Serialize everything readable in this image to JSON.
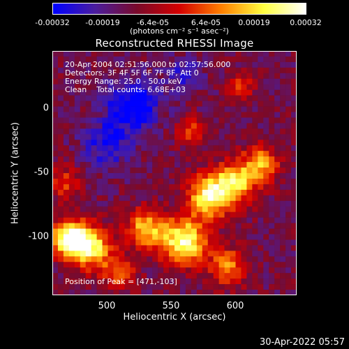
{
  "colorbar": {
    "tick_labels": [
      "-0.00032",
      "-0.00019",
      "-6.4e-05",
      "6.4e-05",
      "0.00019",
      "0.00032"
    ],
    "units": "(photons cm⁻² s⁻¹ asec⁻²)",
    "range": [
      -0.00032,
      0.00032
    ],
    "colors": [
      "#0000ff",
      "#4b1d9e",
      "#7a0a2a",
      "#d40000",
      "#ff8000",
      "#ffff40",
      "#ffffff"
    ]
  },
  "chart_data": {
    "type": "heatmap",
    "title": "Reconstructed RHESSI Image",
    "xlabel": "Heliocentric X (arcsec)",
    "ylabel": "Heliocentric Y (arcsec)",
    "xlim": [
      458,
      648
    ],
    "ylim": [
      -147,
      43
    ],
    "xticks": [
      500,
      550,
      600
    ],
    "yticks": [
      0,
      -50,
      -100
    ],
    "peak": {
      "label": "Position of Peak = [471,-103]",
      "x": 471,
      "y": -103
    },
    "sources": [
      {
        "x": 471,
        "y": -103,
        "amp": 1.0,
        "r": 14
      },
      {
        "x": 488,
        "y": -110,
        "amp": 0.8,
        "r": 16
      },
      {
        "x": 560,
        "y": -105,
        "amp": 0.9,
        "r": 18
      },
      {
        "x": 580,
        "y": -70,
        "amp": 0.85,
        "r": 16
      },
      {
        "x": 600,
        "y": -60,
        "amp": 0.7,
        "r": 16
      },
      {
        "x": 620,
        "y": -45,
        "amp": 0.6,
        "r": 14
      },
      {
        "x": 530,
        "y": -95,
        "amp": 0.7,
        "r": 14
      },
      {
        "x": 565,
        "y": -20,
        "amp": 0.45,
        "r": 10
      },
      {
        "x": 605,
        "y": 15,
        "amp": 0.35,
        "r": 10
      },
      {
        "x": 595,
        "y": -125,
        "amp": 0.55,
        "r": 14
      },
      {
        "x": 510,
        "y": -130,
        "amp": 0.5,
        "r": 12
      },
      {
        "x": 468,
        "y": -60,
        "amp": 0.4,
        "r": 12
      },
      {
        "x": 520,
        "y": 0,
        "amp": -0.5,
        "r": 20
      },
      {
        "x": 500,
        "y": -30,
        "amp": -0.35,
        "r": 18
      },
      {
        "x": 560,
        "y": 25,
        "amp": -0.25,
        "r": 14
      }
    ]
  },
  "info": {
    "lines": [
      "20-Apr-2004 02:51:56.000 to 02:57:56.000",
      "Detectors: 3F 4F 5F 6F 7F 8F, Att 0",
      "Energy Range: 25.0 - 50.0 keV",
      "Clean    Total counts: 6.68E+03"
    ]
  },
  "timestamp": "30-Apr-2022 05:57"
}
